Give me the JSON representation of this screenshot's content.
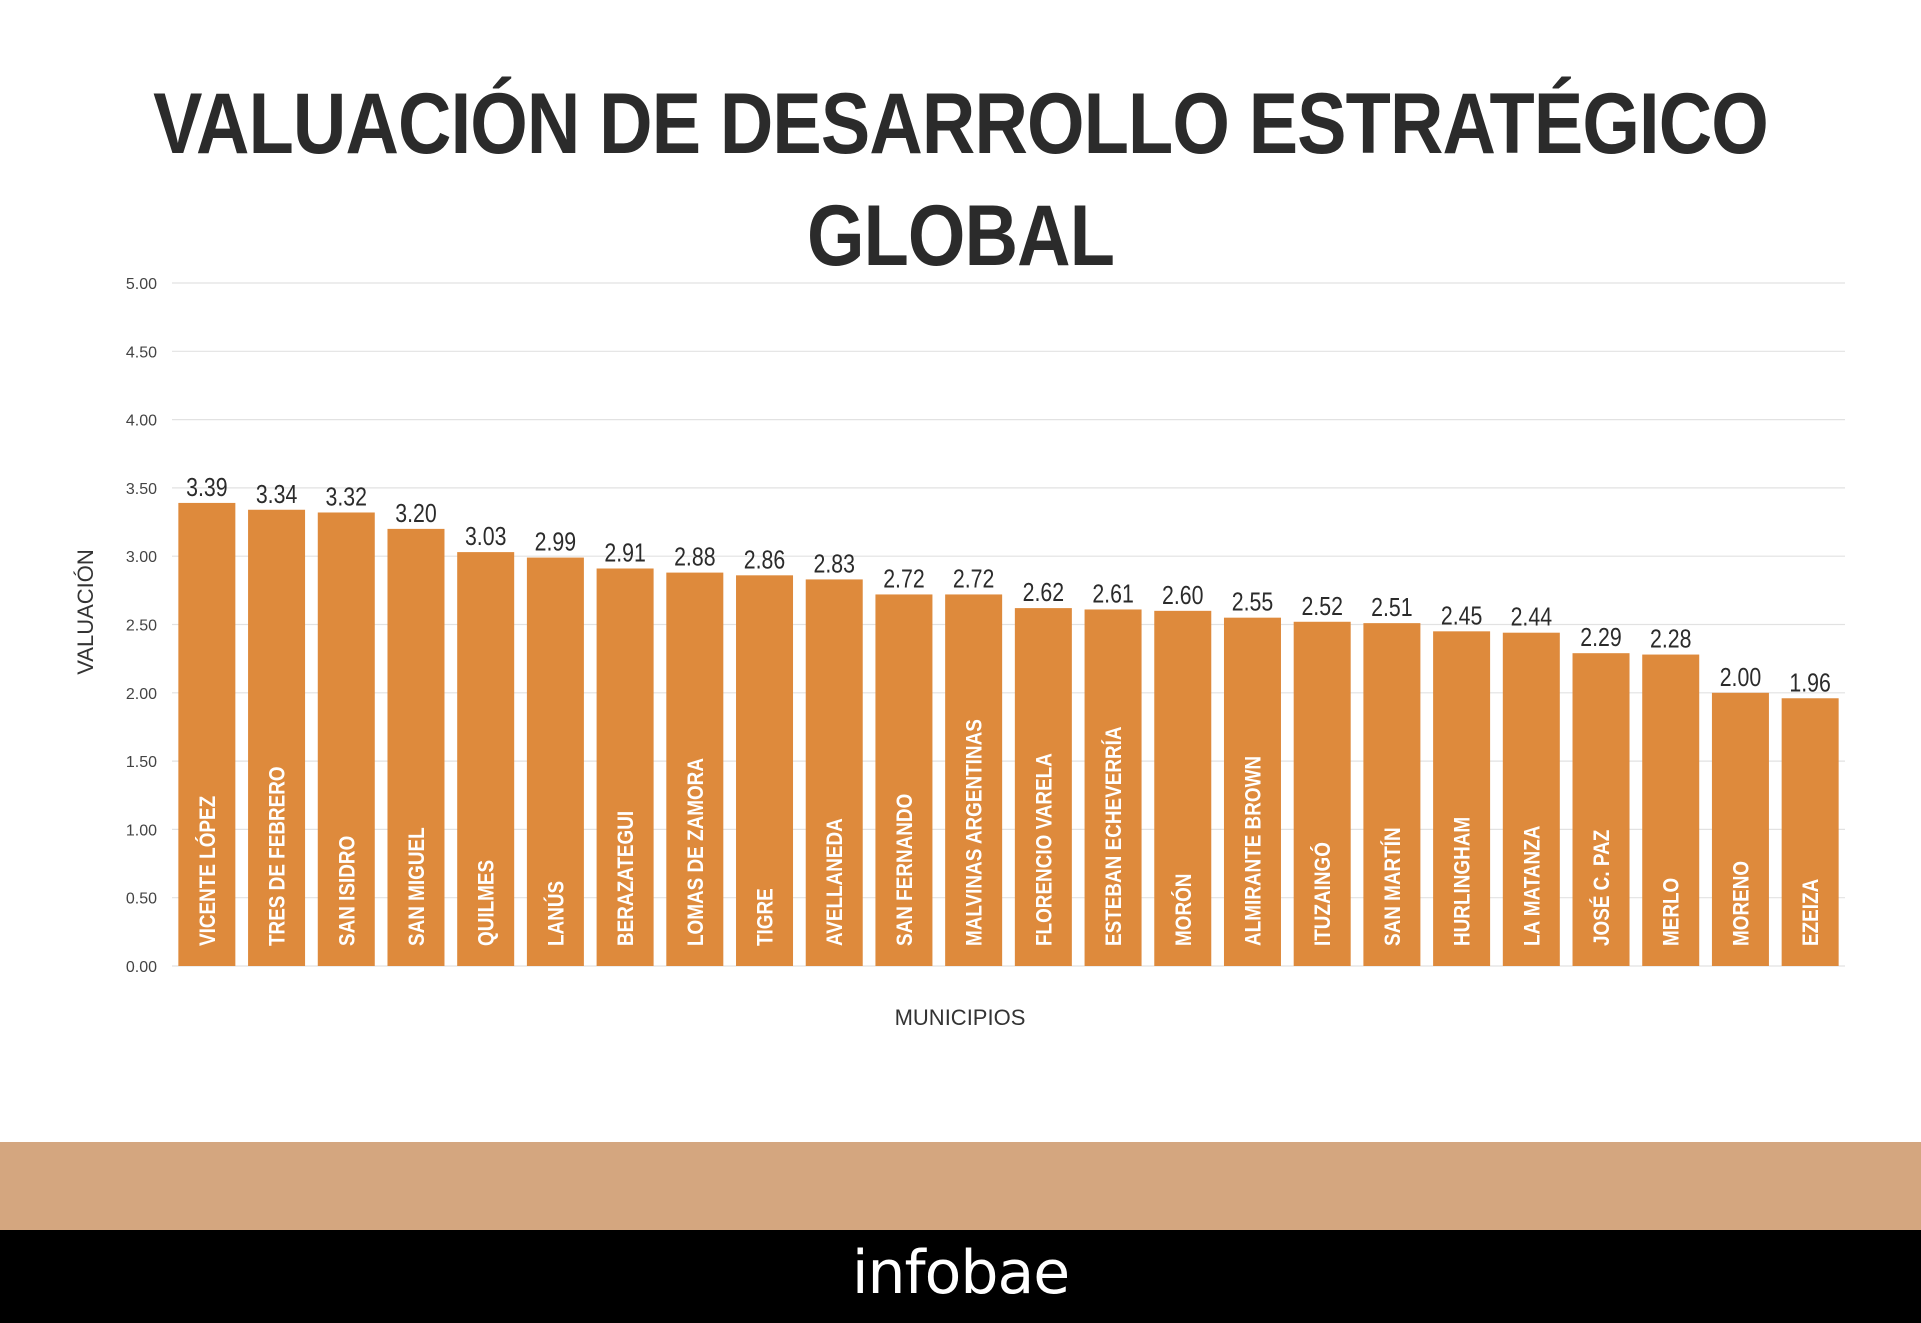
{
  "title": "VALUACIÓN DE DESARROLLO ESTRATÉGICO GLOBAL",
  "logo": "infobae",
  "colors": {
    "bar": "#de8a3c",
    "band": "#d4a67f",
    "footer": "#000000",
    "grid": "#e2e2e2",
    "text": "#2b2b2b"
  },
  "chart_data": {
    "type": "bar",
    "title": "VALUACIÓN DE DESARROLLO ESTRATÉGICO GLOBAL",
    "xlabel": "MUNICIPIOS",
    "ylabel": "VALUACIÓN",
    "ylim": [
      0,
      5
    ],
    "yticks": [
      "0.00",
      "0.50",
      "1.00",
      "1.50",
      "2.00",
      "2.50",
      "3.00",
      "3.50",
      "4.00",
      "4.50",
      "5.00"
    ],
    "grid": true,
    "categories": [
      "VICENTE LÓPEZ",
      "TRES DE FEBRERO",
      "SAN ISIDRO",
      "SAN MIGUEL",
      "QUILMES",
      "LANÚS",
      "BERAZATEGUI",
      "LOMAS DE ZAMORA",
      "TIGRE",
      "AVELLANEDA",
      "SAN FERNANDO",
      "MALVINAS ARGENTINAS",
      "FLORENCIO VARELA",
      "ESTEBAN ECHEVERRÍA",
      "MORÓN",
      "ALMIRANTE BROWN",
      "ITUZAINGÓ",
      "SAN MARTÍN",
      "HURLINGHAM",
      "LA MATANZA",
      "JOSÉ C. PAZ",
      "MERLO",
      "MORENO",
      "EZEIZA"
    ],
    "values": [
      3.39,
      3.34,
      3.32,
      3.2,
      3.03,
      2.99,
      2.91,
      2.88,
      2.86,
      2.83,
      2.72,
      2.72,
      2.62,
      2.61,
      2.6,
      2.55,
      2.52,
      2.51,
      2.45,
      2.44,
      2.29,
      2.28,
      2.0,
      1.96
    ],
    "value_labels": [
      "3.39",
      "3.34",
      "3.32",
      "3.20",
      "3.03",
      "2.99",
      "2.91",
      "2.88",
      "2.86",
      "2.83",
      "2.72",
      "2.72",
      "2.62",
      "2.61",
      "2.60",
      "2.55",
      "2.52",
      "2.51",
      "2.45",
      "2.44",
      "2.29",
      "2.28",
      "2.00",
      "1.96"
    ]
  }
}
